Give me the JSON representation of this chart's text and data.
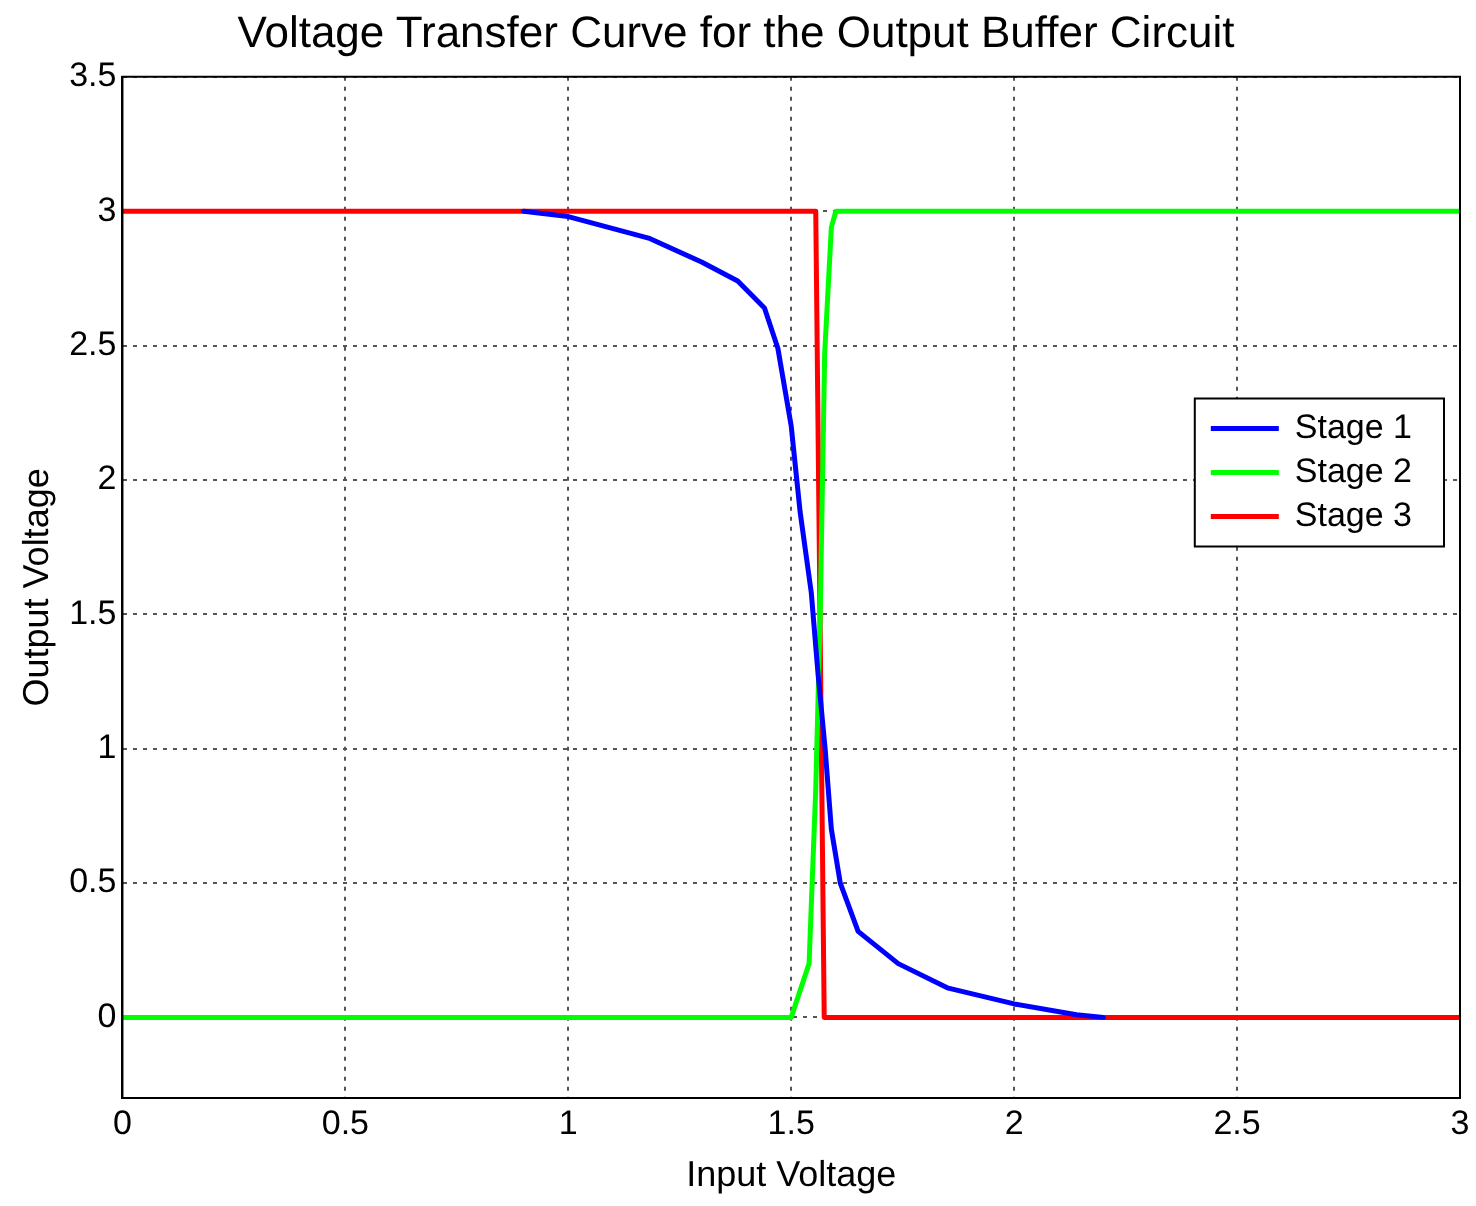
{
  "chart_data": {
    "type": "line",
    "title": "Voltage Transfer Curve for the Output Buffer Circuit",
    "xlabel": "Input Voltage",
    "ylabel": "Output Voltage",
    "xlim": [
      0,
      3
    ],
    "xticks": [
      0,
      0.5,
      1,
      1.5,
      2,
      2.5,
      3
    ],
    "ylim": [
      -0.3,
      3.5
    ],
    "yticks": [
      0,
      0.5,
      1,
      1.5,
      2,
      2.5,
      3,
      3.5
    ],
    "grid": true,
    "legend": "right",
    "marker": "none",
    "line_style": "solid",
    "series": [
      {
        "name": "Stage 1",
        "color": "#0000ff",
        "x": [
          0.9,
          1,
          1.18,
          1.3,
          1.38,
          1.44,
          1.47,
          1.5,
          1.52,
          1.545,
          1.56,
          1.576,
          1.59,
          1.61,
          1.65,
          1.74,
          1.85,
          2,
          2.14,
          2.2
        ],
        "values": [
          3,
          2.98,
          2.9,
          2.81,
          2.74,
          2.64,
          2.49,
          2.2,
          1.88,
          1.58,
          1.28,
          1,
          0.7,
          0.5,
          0.32,
          0.2,
          0.11,
          0.05,
          0.01,
          0
        ]
      },
      {
        "name": "Stage 2",
        "color": "#00ff00",
        "x": [
          0,
          1.5,
          1.54,
          1.555,
          1.565,
          1.575,
          1.59,
          1.6,
          3
        ],
        "values": [
          0,
          0,
          0.2,
          0.85,
          1.5,
          2.47,
          2.94,
          3,
          3
        ]
      },
      {
        "name": "Stage 3",
        "color": "#ff0000",
        "x": [
          0,
          1.555,
          1.574,
          3
        ],
        "values": [
          3,
          3,
          0,
          0
        ]
      }
    ]
  }
}
